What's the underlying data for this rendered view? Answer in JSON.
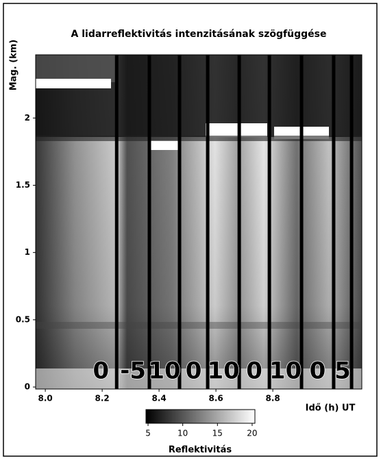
{
  "chart_data": {
    "type": "lidar-image",
    "title": "A lidarreflektivitás intenzitásának szögfüggése",
    "ylabel": "Mag. (km)",
    "xlabel": "Idő (h) UT",
    "xlim": [
      7.966,
      9.113
    ],
    "ylim": [
      -0.015,
      2.47
    ],
    "xticks": [
      {
        "value": 8,
        "label": "8.0"
      },
      8.2,
      8.4,
      8.6,
      8.8
    ],
    "yticks": [
      0,
      0.5,
      1,
      1.5,
      2
    ],
    "segment_boundaries": [
      8.251,
      8.366,
      8.472,
      8.571,
      8.682,
      8.788,
      8.901,
      9.014,
      9.077
    ],
    "segment_labels": [
      0,
      -5,
      10,
      0,
      10,
      0,
      10,
      0,
      5
    ],
    "colorbar": {
      "label": "Reflektivitás",
      "lim": [
        4.7,
        20.4
      ],
      "ticks": [
        5,
        10,
        15,
        20
      ]
    }
  }
}
